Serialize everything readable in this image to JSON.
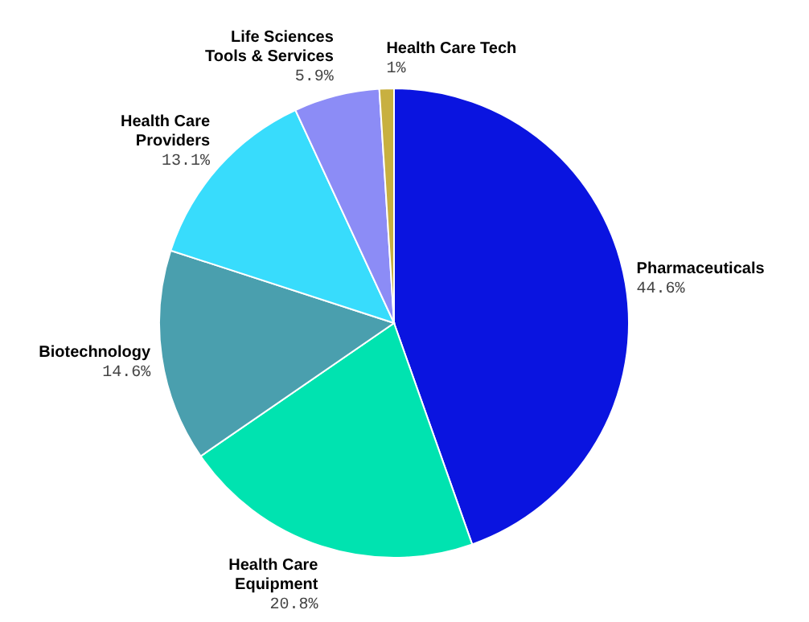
{
  "chart_data": {
    "type": "pie",
    "categories": [
      "Pharmaceuticals",
      "Health Care Equipment",
      "Biotechnology",
      "Health Care Providers",
      "Life Sciences Tools & Services",
      "Health Care Tech"
    ],
    "values": [
      44.6,
      20.8,
      14.6,
      13.1,
      5.9,
      1
    ],
    "value_labels": [
      "44.6%",
      "20.8%",
      "14.6%",
      "13.1%",
      "5.9%",
      "1%"
    ],
    "colors": [
      "#0a14e0",
      "#00e3b0",
      "#4a9fae",
      "#38dcfc",
      "#8c8cf6",
      "#c8b040"
    ],
    "legend": false
  }
}
